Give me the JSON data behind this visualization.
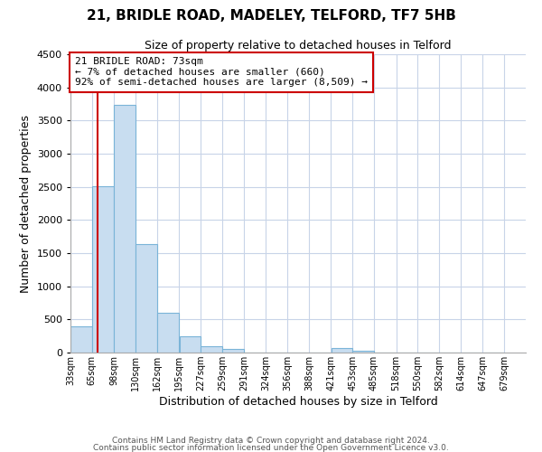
{
  "title": "21, BRIDLE ROAD, MADELEY, TELFORD, TF7 5HB",
  "subtitle": "Size of property relative to detached houses in Telford",
  "xlabel": "Distribution of detached houses by size in Telford",
  "ylabel": "Number of detached properties",
  "footer_line1": "Contains HM Land Registry data © Crown copyright and database right 2024.",
  "footer_line2": "Contains public sector information licensed under the Open Government Licence v3.0.",
  "annotation_title": "21 BRIDLE ROAD: 73sqm",
  "annotation_line1": "← 7% of detached houses are smaller (660)",
  "annotation_line2": "92% of semi-detached houses are larger (8,509) →",
  "property_size": 73,
  "bar_left_edges": [
    33,
    65,
    98,
    130,
    162,
    195,
    227,
    259,
    291,
    324,
    356,
    388,
    421,
    453,
    485,
    518,
    550,
    582,
    614,
    647
  ],
  "bar_widths": [
    32,
    33,
    32,
    32,
    33,
    32,
    32,
    32,
    33,
    32,
    32,
    33,
    32,
    32,
    33,
    32,
    32,
    32,
    33,
    32
  ],
  "bar_heights": [
    390,
    2510,
    3730,
    1640,
    600,
    240,
    100,
    60,
    0,
    0,
    0,
    0,
    70,
    30,
    0,
    0,
    0,
    0,
    0,
    0
  ],
  "bar_color": "#c8ddf0",
  "bar_edge_color": "#7ab4d8",
  "property_line_color": "#cc0000",
  "ylim": [
    0,
    4500
  ],
  "yticks": [
    0,
    500,
    1000,
    1500,
    2000,
    2500,
    3000,
    3500,
    4000,
    4500
  ],
  "xtick_labels": [
    "33sqm",
    "65sqm",
    "98sqm",
    "130sqm",
    "162sqm",
    "195sqm",
    "227sqm",
    "259sqm",
    "291sqm",
    "324sqm",
    "356sqm",
    "388sqm",
    "421sqm",
    "453sqm",
    "485sqm",
    "518sqm",
    "550sqm",
    "582sqm",
    "614sqm",
    "647sqm",
    "679sqm"
  ],
  "xtick_positions": [
    33,
    65,
    98,
    130,
    162,
    195,
    227,
    259,
    291,
    324,
    356,
    388,
    421,
    453,
    485,
    518,
    550,
    582,
    614,
    647,
    679
  ],
  "annotation_box_color": "#ffffff",
  "annotation_box_edge": "#cc0000",
  "background_color": "#ffffff",
  "grid_color": "#c8d4e8",
  "xlim_left": 33,
  "xlim_right": 711
}
